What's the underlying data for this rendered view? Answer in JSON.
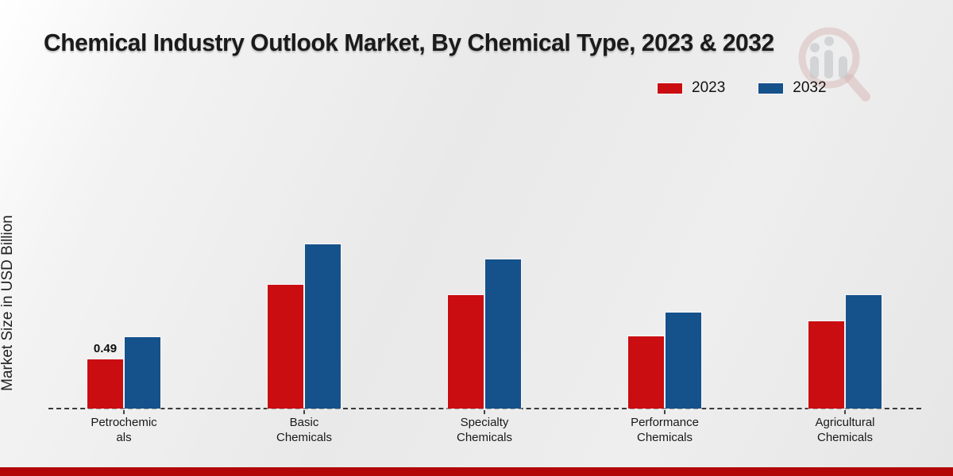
{
  "title": "Chemical Industry Outlook Market, By Chemical Type, 2023 & 2032",
  "footer_color": "#b30606",
  "watermark_icon": "magnifier-bar-chart-logo",
  "chart_data": {
    "type": "bar",
    "title": "Chemical Industry Outlook Market, By Chemical Type, 2023 & 2032",
    "xlabel": "",
    "ylabel": "Market Size in USD Billion",
    "categories": [
      "Petrochemicals",
      "Basic Chemicals",
      "Specialty Chemicals",
      "Performance Chemicals",
      "Agricultural Chemicals"
    ],
    "category_display": [
      [
        "Petrochemic",
        "als"
      ],
      [
        "Basic",
        "Chemicals"
      ],
      [
        "Specialty",
        "Chemicals"
      ],
      [
        "Performance",
        "Chemicals"
      ],
      [
        "Agricultural",
        "Chemicals"
      ]
    ],
    "series": [
      {
        "name": "2023",
        "color": "#c90d10",
        "values": [
          0.49,
          1.23,
          1.13,
          0.72,
          0.87
        ]
      },
      {
        "name": "2032",
        "color": "#15518b",
        "values": [
          0.71,
          1.64,
          1.49,
          0.96,
          1.13
        ]
      }
    ],
    "data_labels": [
      {
        "series": "2023",
        "category_index": 0,
        "text": "0.49"
      }
    ],
    "ylim": [
      0,
      2.0
    ],
    "grid": false,
    "legend_position": "top-right",
    "baseline_style": "dashed"
  }
}
